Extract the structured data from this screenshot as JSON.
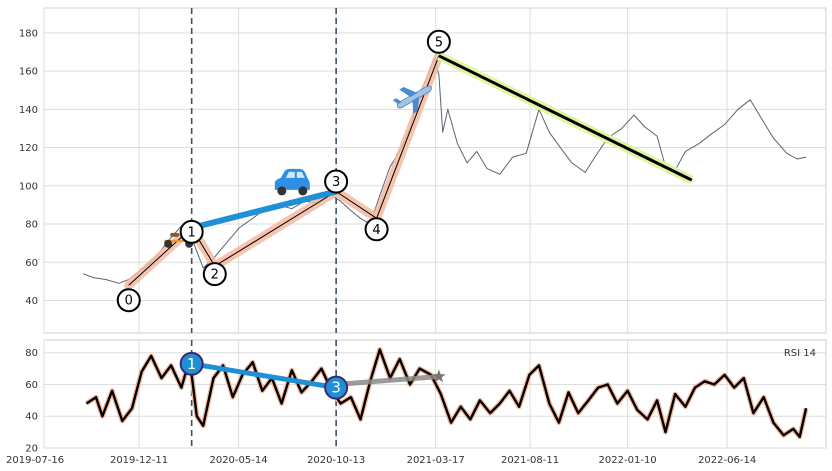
{
  "chart_data": {
    "type": "line",
    "grid": true,
    "colors": {
      "price": "#5a6472",
      "wave_fill": "#f5b9a0",
      "wave_line": "#000000",
      "trend_blue": "#1f8fd6",
      "trend_yellow": "#dff5a0",
      "vline": "#3c5068",
      "rsi_line": "#000000",
      "rsi_glow": "#f5b9a0",
      "grid": "#dddddd",
      "panel_border": "#cfcfcf"
    },
    "x_ticks": [
      "2019-07-16",
      "2019-12-11",
      "2020-05-14",
      "2020-10-13",
      "2021-03-17",
      "2021-08-11",
      "2022-01-10",
      "2022-06-14"
    ],
    "x_range": [
      "2019-07-16",
      "2022-11-15"
    ],
    "price_panel": {
      "ylim": [
        23,
        193
      ],
      "y_ticks": [
        40,
        60,
        80,
        100,
        120,
        140,
        160,
        180
      ],
      "price_series": [
        [
          "2019-09-15",
          54
        ],
        [
          "2019-10-01",
          52
        ],
        [
          "2019-10-20",
          51
        ],
        [
          "2019-11-10",
          49
        ],
        [
          "2019-11-25",
          51
        ],
        [
          "2019-12-15",
          56
        ],
        [
          "2020-01-05",
          62
        ],
        [
          "2020-01-25",
          71
        ],
        [
          "2020-02-15",
          79
        ],
        [
          "2020-03-05",
          70
        ],
        [
          "2020-03-20",
          57
        ],
        [
          "2020-04-05",
          62
        ],
        [
          "2020-04-25",
          70
        ],
        [
          "2020-05-15",
          78
        ],
        [
          "2020-06-05",
          83
        ],
        [
          "2020-06-25",
          88
        ],
        [
          "2020-07-15",
          90
        ],
        [
          "2020-08-05",
          88
        ],
        [
          "2020-08-25",
          92
        ],
        [
          "2020-09-15",
          91
        ],
        [
          "2020-10-01",
          96
        ],
        [
          "2020-10-20",
          92
        ],
        [
          "2020-11-05",
          87
        ],
        [
          "2020-11-20",
          83
        ],
        [
          "2020-12-05",
          80
        ],
        [
          "2020-12-20",
          95
        ],
        [
          "2021-01-05",
          110
        ],
        [
          "2021-01-20",
          118
        ],
        [
          "2021-02-05",
          130
        ],
        [
          "2021-02-20",
          148
        ],
        [
          "2021-03-05",
          158
        ],
        [
          "2021-03-15",
          167
        ],
        [
          "2021-03-22",
          158
        ],
        [
          "2021-03-28",
          128
        ],
        [
          "2021-04-05",
          140
        ],
        [
          "2021-04-20",
          122
        ],
        [
          "2021-05-05",
          112
        ],
        [
          "2021-05-20",
          118
        ],
        [
          "2021-06-05",
          109
        ],
        [
          "2021-06-25",
          106
        ],
        [
          "2021-07-15",
          115
        ],
        [
          "2021-08-05",
          117
        ],
        [
          "2021-08-25",
          140
        ],
        [
          "2021-09-10",
          128
        ],
        [
          "2021-09-25",
          121
        ],
        [
          "2021-10-15",
          112
        ],
        [
          "2021-11-05",
          107
        ],
        [
          "2021-11-20",
          115
        ],
        [
          "2021-12-10",
          125
        ],
        [
          "2022-01-01",
          130
        ],
        [
          "2022-01-20",
          137
        ],
        [
          "2022-02-05",
          131
        ],
        [
          "2022-02-25",
          126
        ],
        [
          "2022-03-10",
          110
        ],
        [
          "2022-03-25",
          108
        ],
        [
          "2022-04-10",
          118
        ],
        [
          "2022-05-01",
          122
        ],
        [
          "2022-05-20",
          127
        ],
        [
          "2022-06-10",
          132
        ],
        [
          "2022-07-01",
          140
        ],
        [
          "2022-07-20",
          145
        ],
        [
          "2022-08-05",
          136
        ],
        [
          "2022-08-25",
          125
        ],
        [
          "2022-09-15",
          117
        ],
        [
          "2022-10-01",
          114
        ],
        [
          "2022-10-15",
          115
        ]
      ],
      "wave_points": [
        {
          "label": "0",
          "date": "2019-11-25",
          "value": 48
        },
        {
          "label": "1",
          "date": "2020-03-02",
          "value": 78
        },
        {
          "label": "2",
          "date": "2020-04-07",
          "value": 58
        },
        {
          "label": "3",
          "date": "2020-10-13",
          "value": 97
        },
        {
          "label": "4",
          "date": "2020-12-15",
          "value": 83
        },
        {
          "label": "5",
          "date": "2021-03-22",
          "value": 168
        }
      ],
      "trend_blue": [
        [
          "2020-03-02",
          78
        ],
        [
          "2020-10-13",
          97
        ]
      ],
      "trend_yellow": [
        [
          "2021-03-22",
          168
        ],
        [
          "2022-04-20",
          103
        ]
      ],
      "markers": [
        {
          "icon": "scooter-icon",
          "date": "2020-02-10",
          "value": 78
        },
        {
          "icon": "car-icon",
          "date": "2020-08-05",
          "value": 101
        },
        {
          "icon": "airplane-icon",
          "date": "2021-02-10",
          "value": 144
        }
      ],
      "vlines": [
        "2020-03-02",
        "2020-10-13"
      ]
    },
    "rsi_panel": {
      "label": "RSI 14",
      "ylim": [
        20,
        88
      ],
      "y_ticks": [
        20,
        40,
        60,
        80
      ],
      "rsi_series": [
        [
          "2019-09-20",
          48
        ],
        [
          "2019-10-05",
          52
        ],
        [
          "2019-10-15",
          40
        ],
        [
          "2019-10-30",
          56
        ],
        [
          "2019-11-15",
          37
        ],
        [
          "2019-11-30",
          45
        ],
        [
          "2019-12-15",
          68
        ],
        [
          "2019-12-30",
          78
        ],
        [
          "2020-01-15",
          64
        ],
        [
          "2020-01-30",
          72
        ],
        [
          "2020-02-15",
          58
        ],
        [
          "2020-02-28",
          76
        ],
        [
          "2020-03-10",
          40
        ],
        [
          "2020-03-20",
          34
        ],
        [
          "2020-04-05",
          64
        ],
        [
          "2020-04-20",
          72
        ],
        [
          "2020-05-05",
          52
        ],
        [
          "2020-05-20",
          66
        ],
        [
          "2020-06-05",
          74
        ],
        [
          "2020-06-20",
          56
        ],
        [
          "2020-07-05",
          64
        ],
        [
          "2020-07-20",
          48
        ],
        [
          "2020-08-05",
          69
        ],
        [
          "2020-08-20",
          55
        ],
        [
          "2020-09-05",
          62
        ],
        [
          "2020-09-20",
          70
        ],
        [
          "2020-10-05",
          57
        ],
        [
          "2020-10-20",
          48
        ],
        [
          "2020-11-05",
          52
        ],
        [
          "2020-11-20",
          38
        ],
        [
          "2020-12-05",
          62
        ],
        [
          "2020-12-20",
          82
        ],
        [
          "2021-01-05",
          64
        ],
        [
          "2021-01-20",
          76
        ],
        [
          "2021-02-05",
          60
        ],
        [
          "2021-02-20",
          70
        ],
        [
          "2021-03-10",
          66
        ],
        [
          "2021-03-25",
          54
        ],
        [
          "2021-04-10",
          36
        ],
        [
          "2021-04-25",
          46
        ],
        [
          "2021-05-10",
          38
        ],
        [
          "2021-05-25",
          50
        ],
        [
          "2021-06-10",
          42
        ],
        [
          "2021-06-25",
          48
        ],
        [
          "2021-07-10",
          56
        ],
        [
          "2021-07-25",
          46
        ],
        [
          "2021-08-10",
          66
        ],
        [
          "2021-08-25",
          72
        ],
        [
          "2021-09-10",
          48
        ],
        [
          "2021-09-25",
          36
        ],
        [
          "2021-10-10",
          55
        ],
        [
          "2021-10-25",
          42
        ],
        [
          "2021-11-10",
          50
        ],
        [
          "2021-11-25",
          58
        ],
        [
          "2021-12-10",
          60
        ],
        [
          "2021-12-25",
          48
        ],
        [
          "2022-01-10",
          56
        ],
        [
          "2022-01-25",
          44
        ],
        [
          "2022-02-10",
          38
        ],
        [
          "2022-02-25",
          50
        ],
        [
          "2022-03-10",
          30
        ],
        [
          "2022-03-25",
          54
        ],
        [
          "2022-04-10",
          46
        ],
        [
          "2022-04-25",
          58
        ],
        [
          "2022-05-10",
          62
        ],
        [
          "2022-05-25",
          60
        ],
        [
          "2022-06-10",
          66
        ],
        [
          "2022-06-25",
          58
        ],
        [
          "2022-07-10",
          64
        ],
        [
          "2022-07-25",
          42
        ],
        [
          "2022-08-10",
          52
        ],
        [
          "2022-08-25",
          36
        ],
        [
          "2022-09-10",
          28
        ],
        [
          "2022-09-25",
          32
        ],
        [
          "2022-10-05",
          27
        ],
        [
          "2022-10-15",
          45
        ]
      ],
      "points": [
        {
          "label": "1",
          "date": "2020-03-02",
          "value": 73
        },
        {
          "label": "3",
          "date": "2020-10-13",
          "value": 58
        }
      ],
      "trend_blue": [
        [
          "2020-03-02",
          73
        ],
        [
          "2020-10-13",
          58
        ]
      ],
      "trend_gray": [
        [
          "2020-10-13",
          60
        ],
        [
          "2021-03-22",
          65
        ]
      ],
      "star_marker": {
        "icon": "star-icon",
        "date": "2021-03-22",
        "value": 65
      }
    }
  }
}
